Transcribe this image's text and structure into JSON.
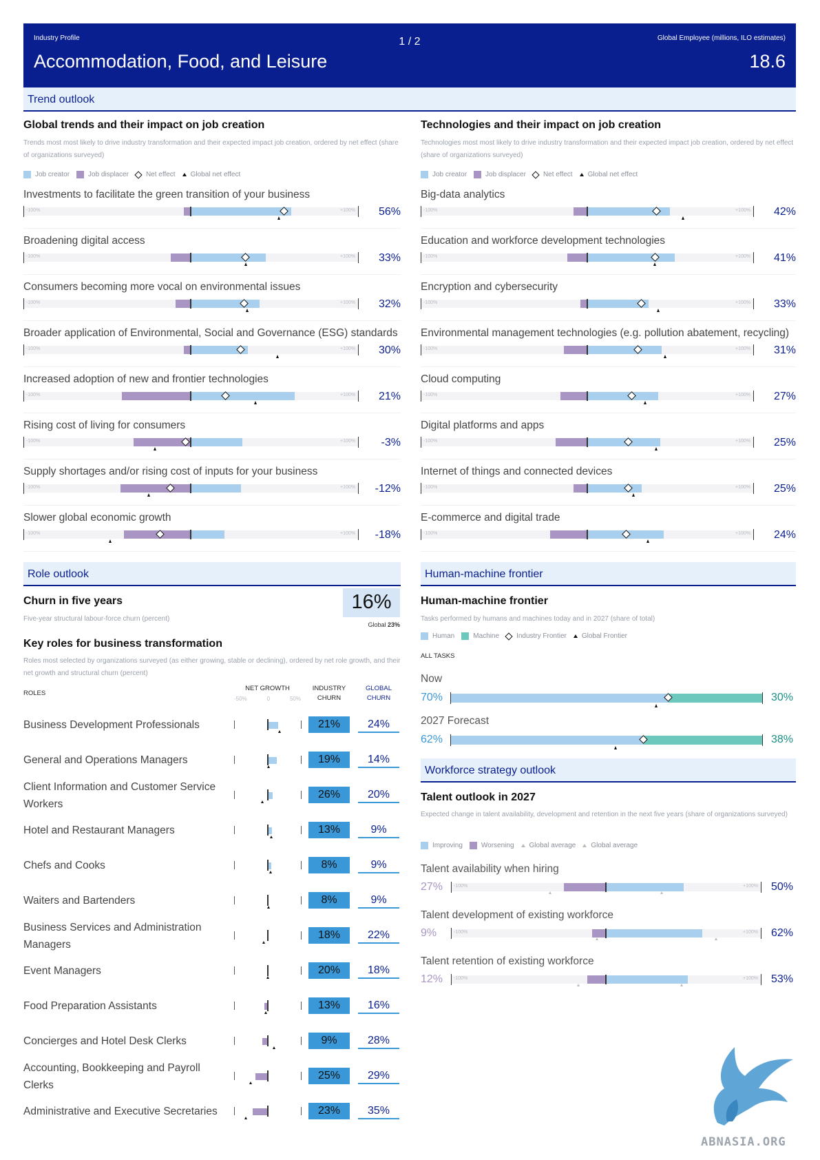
{
  "header": {
    "label": "Industry Profile",
    "title": "Accommodation, Food, and Leisure",
    "page": "1 / 2",
    "metric_label": "Global Employee (millions, ILO estimates)",
    "metric_value": "18.6"
  },
  "colors": {
    "navy": "#0a1f8f",
    "job_creator": "#a8d0ee",
    "job_displacer": "#a995c4",
    "machine": "#6cc8bd",
    "churn": "#3a98d8"
  },
  "trend_outlook": {
    "band": "Trend outlook",
    "tick_min": "-100%",
    "tick_max": "+100%",
    "global_trends": {
      "title": "Global trends and their impact on job creation",
      "desc": "Trends most most likely to drive industry transformation and their expected impact job creation, ordered by net effect (share of organizations surveyed)",
      "legend": {
        "creator": "Job creator",
        "displacer": "Job displacer",
        "net": "Net effect",
        "global": "Global net effect"
      },
      "items": [
        {
          "label": "Investments to facilitate the green transition of your business",
          "displacer": 4,
          "creator": 60,
          "net_value": 56,
          "global_net": 53,
          "net": "56%"
        },
        {
          "label": "Broadening digital access",
          "displacer": 12,
          "creator": 45,
          "net_value": 33,
          "global_net": 33,
          "net": "33%"
        },
        {
          "label": "Consumers becoming more vocal on environmental issues",
          "displacer": 9,
          "creator": 41,
          "net_value": 32,
          "global_net": 34,
          "net": "32%"
        },
        {
          "label": "Broader application of Environmental, Social and Governance (ESG) standards",
          "displacer": 4,
          "creator": 34,
          "net_value": 30,
          "global_net": 52,
          "net": "30%"
        },
        {
          "label": "Increased adoption of new and frontier technologies",
          "displacer": 41,
          "creator": 62,
          "net_value": 21,
          "global_net": 39,
          "net": "21%"
        },
        {
          "label": "Rising cost of living for consumers",
          "displacer": 34,
          "creator": 31,
          "net_value": -3,
          "global_net": -21,
          "net": "-3%"
        },
        {
          "label": "Supply shortages and/or rising cost of inputs for your business",
          "displacer": 42,
          "creator": 30,
          "net_value": -12,
          "global_net": -25,
          "net": "-12%"
        },
        {
          "label": "Slower global economic growth",
          "displacer": 40,
          "creator": 20,
          "net_value": -18,
          "global_net": -48,
          "net": "-18%"
        }
      ]
    },
    "technologies": {
      "title": "Technologies and their impact on job creation",
      "desc": "Technologies most most likely to drive industry transformation and their expected impact job creation, ordered by net effect (share of organizations surveyed)",
      "legend": {
        "creator": "Job creator",
        "displacer": "Job displacer",
        "net": "Net effect",
        "global": "Global net effect"
      },
      "items": [
        {
          "label": "Big-data analytics",
          "displacer": 8,
          "creator": 50,
          "net_value": 42,
          "global_net": 58,
          "net": "42%"
        },
        {
          "label": "Education and workforce development technologies",
          "displacer": 12,
          "creator": 53,
          "net_value": 41,
          "global_net": 41,
          "net": "41%"
        },
        {
          "label": "Encryption and cybersecurity",
          "displacer": 4,
          "creator": 37,
          "net_value": 33,
          "global_net": 43,
          "net": "33%"
        },
        {
          "label": "Environmental management technologies (e.g. pollution abatement, recycling)",
          "displacer": 14,
          "creator": 45,
          "net_value": 31,
          "global_net": 47,
          "net": "31%"
        },
        {
          "label": "Cloud computing",
          "displacer": 16,
          "creator": 43,
          "net_value": 27,
          "global_net": 35,
          "net": "27%"
        },
        {
          "label": "Digital platforms and apps",
          "displacer": 19,
          "creator": 44,
          "net_value": 25,
          "global_net": 42,
          "net": "25%"
        },
        {
          "label": "Internet of things and connected devices",
          "displacer": 8,
          "creator": 33,
          "net_value": 25,
          "global_net": 28,
          "net": "25%"
        },
        {
          "label": "E-commerce and digital trade",
          "displacer": 22,
          "creator": 46,
          "net_value": 24,
          "global_net": 37,
          "net": "24%"
        }
      ]
    }
  },
  "role_outlook": {
    "band": "Role outlook",
    "churn": {
      "title": "Churn in five years",
      "desc": "Five-year structural labour-force churn (percent)",
      "value": "16%",
      "global_label": "Global",
      "global_value": "23%"
    },
    "key_roles": {
      "title": "Key roles for business transformation",
      "desc": "Roles most selected by organizations surveyed (as either growing, stable or declining), ordered by net role growth, and their net growth and structural churn (percent)",
      "columns": {
        "roles": "ROLES",
        "net_growth": "NET GROWTH",
        "industry_churn": "INDUSTRY CHURN",
        "global_churn": "GLOBAL CHURN",
        "tick_neg": "-50%",
        "tick_zero": "0",
        "tick_pos": "50%"
      },
      "rows": [
        {
          "role": "Business Development Professionals",
          "net_growth": 16,
          "global_growth": 18,
          "industry_churn": "21%",
          "global_churn": "24%"
        },
        {
          "role": "General and Operations Managers",
          "net_growth": 14,
          "global_growth": 2,
          "industry_churn": "19%",
          "global_churn": "14%"
        },
        {
          "role": "Client Information and Customer Service Workers",
          "net_growth": 8,
          "global_growth": -8,
          "industry_churn": "26%",
          "global_churn": "20%"
        },
        {
          "role": "Hotel and Restaurant Managers",
          "net_growth": 7,
          "global_growth": 6,
          "industry_churn": "13%",
          "global_churn": "9%"
        },
        {
          "role": "Chefs and Cooks",
          "net_growth": 6,
          "global_growth": 5,
          "industry_churn": "8%",
          "global_churn": "9%"
        },
        {
          "role": "Waiters and Bartenders",
          "net_growth": 2,
          "global_growth": 2,
          "industry_churn": "8%",
          "global_churn": "9%"
        },
        {
          "role": "Business Services and Administration Managers",
          "net_growth": 1,
          "global_growth": -6,
          "industry_churn": "18%",
          "global_churn": "22%"
        },
        {
          "role": "Event Managers",
          "net_growth": 0,
          "global_growth": 0,
          "industry_churn": "20%",
          "global_churn": "18%"
        },
        {
          "role": "Food Preparation Assistants",
          "net_growth": -5,
          "global_growth": -3,
          "industry_churn": "13%",
          "global_churn": "16%"
        },
        {
          "role": "Concierges and Hotel Desk Clerks",
          "net_growth": -8,
          "global_growth": 10,
          "industry_churn": "9%",
          "global_churn": "28%"
        },
        {
          "role": "Accounting, Bookkeeping and Payroll Clerks",
          "net_growth": -18,
          "global_growth": -25,
          "industry_churn": "25%",
          "global_churn": "29%"
        },
        {
          "role": "Administrative and Executive Secretaries",
          "net_growth": -22,
          "global_growth": -32,
          "industry_churn": "23%",
          "global_churn": "35%"
        }
      ]
    }
  },
  "human_machine": {
    "band": "Human-machine frontier",
    "title": "Human-machine frontier",
    "desc": "Tasks performed by humans and machines today and in 2027 (share of total)",
    "legend": {
      "human": "Human",
      "machine": "Machine",
      "industry": "Industry Frontier",
      "global": "Global Frontier"
    },
    "all_tasks": "ALL TASKS",
    "rows": [
      {
        "label": "Now",
        "human_value": 70,
        "global_frontier": 66,
        "human": "70%",
        "machine": "30%"
      },
      {
        "label": "2027 Forecast",
        "human_value": 62,
        "global_frontier": 53,
        "human": "62%",
        "machine": "38%"
      }
    ]
  },
  "workforce": {
    "band": "Workforce strategy outlook",
    "title": "Talent outlook in 2027",
    "desc": "Expected change in talent availability, development and retention in the next five years (share of organizations surveyed)",
    "legend": {
      "improving": "Improving",
      "worsening": "Worsening",
      "global_a": "Global average",
      "global_b": "Global average"
    },
    "rows": [
      {
        "label": "Talent availability when hiring",
        "worsening": 27,
        "improving": 50,
        "global_worsening": 36,
        "global_improving": 36,
        "worsening_label": "27%",
        "improving_label": "50%"
      },
      {
        "label": "Talent development of existing workforce",
        "worsening": 9,
        "improving": 62,
        "global_worsening": 6,
        "global_improving": 71,
        "worsening_label": "9%",
        "improving_label": "62%"
      },
      {
        "label": "Talent retention of existing workforce",
        "worsening": 12,
        "improving": 53,
        "global_worsening": 18,
        "global_improving": 49,
        "worsening_label": "12%",
        "improving_label": "53%"
      }
    ]
  },
  "logo": {
    "text": "ABNASIA.ORG",
    "icon": "griffin-icon"
  }
}
